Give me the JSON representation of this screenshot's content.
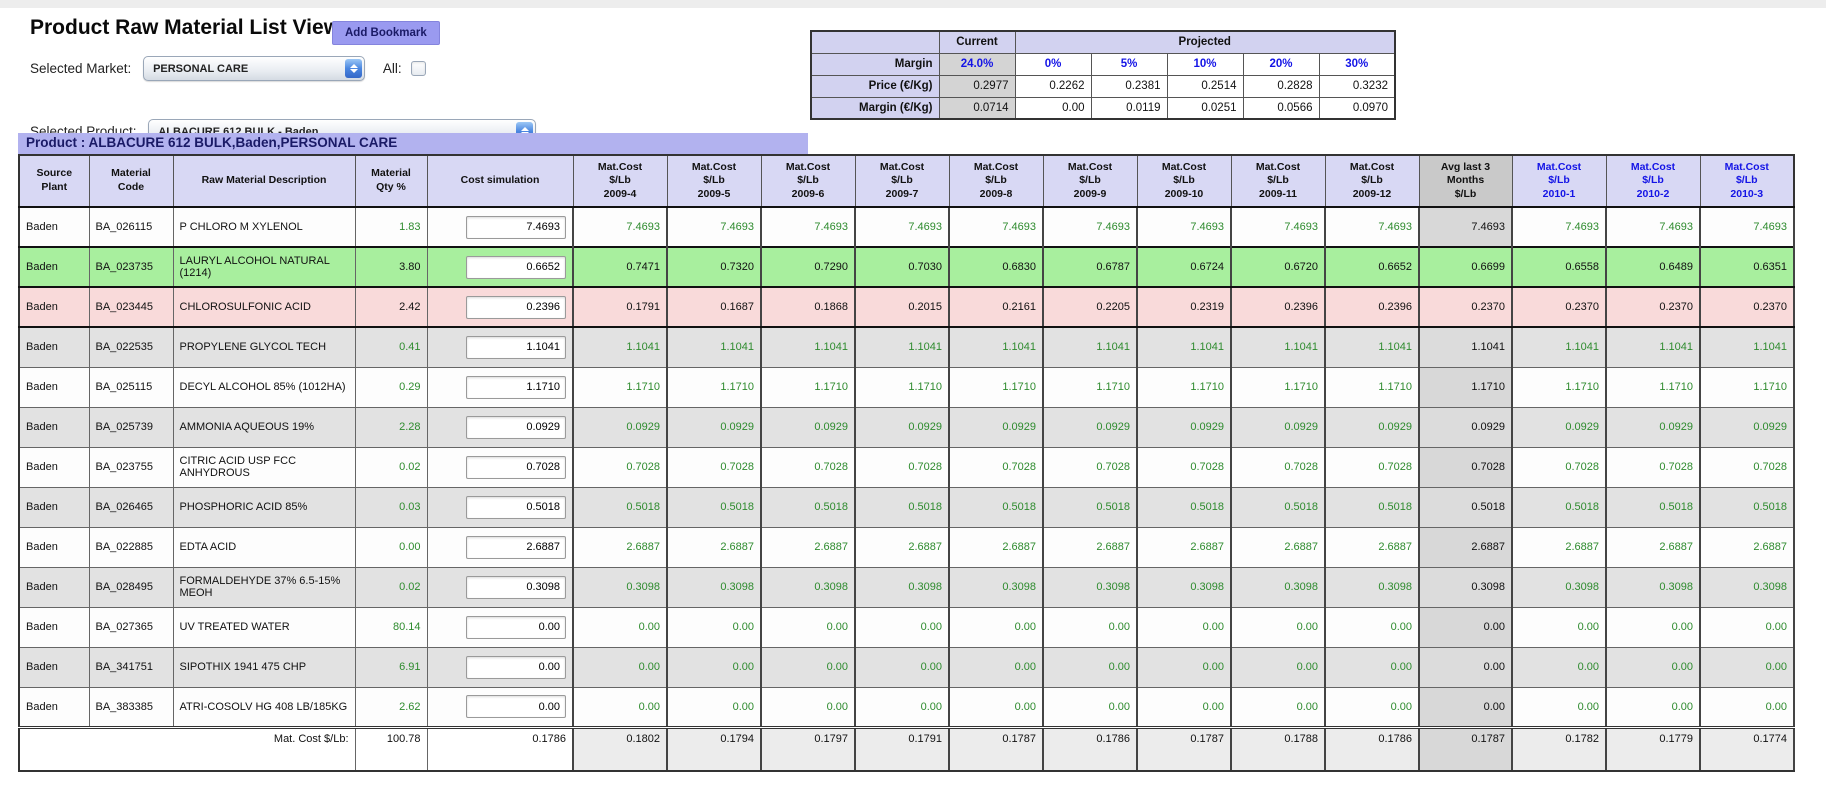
{
  "page": {
    "title": "Product Raw Material List View",
    "add_bookmark_label": "Add Bookmark"
  },
  "filters": {
    "market_label": "Selected Market:",
    "market_value": "PERSONAL CARE",
    "all_label": "All:",
    "all_checked": false,
    "product_label": "Selected Product:",
    "product_value": "ALBACURE 612 BULK - Baden"
  },
  "margin_table": {
    "current_label": "Current",
    "projected_label": "Projected",
    "margin_row": {
      "label": "Margin",
      "current": "24.0%",
      "values": [
        "0%",
        "5%",
        "10%",
        "20%",
        "30%"
      ]
    },
    "price_row": {
      "label": "Price (€/Kg)",
      "current": "0.2977",
      "values": [
        "0.2262",
        "0.2381",
        "0.2514",
        "0.2828",
        "0.3232"
      ]
    },
    "margin_kg_row": {
      "label": "Margin (€/Kg)",
      "current": "0.0714",
      "values": [
        "0.00",
        "0.0119",
        "0.0251",
        "0.0566",
        "0.0970"
      ]
    }
  },
  "banner": "Product : ALBACURE 612 BULK,Baden,PERSONAL CARE",
  "colors": {
    "accent_lavender": "#b2b2ef",
    "header_lavender": "#d8d8f4",
    "green_row": "#a8ef9e",
    "pink_row": "#f9dada",
    "gray_row": "#e2e2e2",
    "green_text": "#2e8b2e",
    "blue_text": "#1414e6",
    "avg_gray": "#d8d8d8"
  },
  "table": {
    "fixed_headers": [
      [
        "Source",
        "Plant"
      ],
      [
        "Material",
        "Code"
      ],
      [
        "Raw Material Description"
      ],
      [
        "Material",
        "Qty %"
      ],
      [
        "Cost simulation"
      ]
    ],
    "month_headers": [
      {
        "lines": [
          "Mat.Cost",
          "$/Lb",
          "2009-4"
        ],
        "type": "past"
      },
      {
        "lines": [
          "Mat.Cost",
          "$/Lb",
          "2009-5"
        ],
        "type": "past"
      },
      {
        "lines": [
          "Mat.Cost",
          "$/Lb",
          "2009-6"
        ],
        "type": "past"
      },
      {
        "lines": [
          "Mat.Cost",
          "$/Lb",
          "2009-7"
        ],
        "type": "past"
      },
      {
        "lines": [
          "Mat.Cost",
          "$/Lb",
          "2009-8"
        ],
        "type": "past"
      },
      {
        "lines": [
          "Mat.Cost",
          "$/Lb",
          "2009-9"
        ],
        "type": "past"
      },
      {
        "lines": [
          "Mat.Cost",
          "$/Lb",
          "2009-10"
        ],
        "type": "past"
      },
      {
        "lines": [
          "Mat.Cost",
          "$/Lb",
          "2009-11"
        ],
        "type": "past"
      },
      {
        "lines": [
          "Mat.Cost",
          "$/Lb",
          "2009-12"
        ],
        "type": "past"
      },
      {
        "lines": [
          "Avg last 3",
          "Months",
          "$/Lb"
        ],
        "type": "avg"
      },
      {
        "lines": [
          "Mat.Cost",
          "$/Lb",
          "2010-1"
        ],
        "type": "future"
      },
      {
        "lines": [
          "Mat.Cost",
          "$/Lb",
          "2010-2"
        ],
        "type": "future"
      },
      {
        "lines": [
          "Mat.Cost",
          "$/Lb",
          "2010-3"
        ],
        "type": "future"
      }
    ],
    "rows": [
      {
        "plant": "Baden",
        "code": "BA_026115",
        "desc": "P CHLORO M XYLENOL",
        "qty": "1.83",
        "sim": "7.4693",
        "bg": "white",
        "months": [
          "7.4693",
          "7.4693",
          "7.4693",
          "7.4693",
          "7.4693",
          "7.4693",
          "7.4693",
          "7.4693",
          "7.4693",
          "7.4693",
          "7.4693",
          "7.4693",
          "7.4693"
        ]
      },
      {
        "plant": "Baden",
        "code": "BA_023735",
        "desc": "LAURYL ALCOHOL NATURAL (1214)",
        "qty": "3.80",
        "sim": "0.6652",
        "bg": "green",
        "months": [
          "0.7471",
          "0.7320",
          "0.7290",
          "0.7030",
          "0.6830",
          "0.6787",
          "0.6724",
          "0.6720",
          "0.6652",
          "0.6699",
          "0.6558",
          "0.6489",
          "0.6351"
        ]
      },
      {
        "plant": "Baden",
        "code": "BA_023445",
        "desc": "CHLOROSULFONIC ACID",
        "qty": "2.42",
        "sim": "0.2396",
        "bg": "pink",
        "months": [
          "0.1791",
          "0.1687",
          "0.1868",
          "0.2015",
          "0.2161",
          "0.2205",
          "0.2319",
          "0.2396",
          "0.2396",
          "0.2370",
          "0.2370",
          "0.2370",
          "0.2370"
        ]
      },
      {
        "plant": "Baden",
        "code": "BA_022535",
        "desc": "PROPYLENE GLYCOL TECH",
        "qty": "0.41",
        "sim": "1.1041",
        "bg": "gray",
        "months": [
          "1.1041",
          "1.1041",
          "1.1041",
          "1.1041",
          "1.1041",
          "1.1041",
          "1.1041",
          "1.1041",
          "1.1041",
          "1.1041",
          "1.1041",
          "1.1041",
          "1.1041"
        ]
      },
      {
        "plant": "Baden",
        "code": "BA_025115",
        "desc": "DECYL ALCOHOL 85% (1012HA)",
        "qty": "0.29",
        "sim": "1.1710",
        "bg": "white",
        "months": [
          "1.1710",
          "1.1710",
          "1.1710",
          "1.1710",
          "1.1710",
          "1.1710",
          "1.1710",
          "1.1710",
          "1.1710",
          "1.1710",
          "1.1710",
          "1.1710",
          "1.1710"
        ]
      },
      {
        "plant": "Baden",
        "code": "BA_025739",
        "desc": "AMMONIA AQUEOUS 19%",
        "qty": "2.28",
        "sim": "0.0929",
        "bg": "gray",
        "months": [
          "0.0929",
          "0.0929",
          "0.0929",
          "0.0929",
          "0.0929",
          "0.0929",
          "0.0929",
          "0.0929",
          "0.0929",
          "0.0929",
          "0.0929",
          "0.0929",
          "0.0929"
        ]
      },
      {
        "plant": "Baden",
        "code": "BA_023755",
        "desc": "CITRIC ACID USP FCC ANHYDROUS",
        "qty": "0.02",
        "sim": "0.7028",
        "bg": "white",
        "months": [
          "0.7028",
          "0.7028",
          "0.7028",
          "0.7028",
          "0.7028",
          "0.7028",
          "0.7028",
          "0.7028",
          "0.7028",
          "0.7028",
          "0.7028",
          "0.7028",
          "0.7028"
        ]
      },
      {
        "plant": "Baden",
        "code": "BA_026465",
        "desc": "PHOSPHORIC ACID 85%",
        "qty": "0.03",
        "sim": "0.5018",
        "bg": "gray",
        "months": [
          "0.5018",
          "0.5018",
          "0.5018",
          "0.5018",
          "0.5018",
          "0.5018",
          "0.5018",
          "0.5018",
          "0.5018",
          "0.5018",
          "0.5018",
          "0.5018",
          "0.5018"
        ]
      },
      {
        "plant": "Baden",
        "code": "BA_022885",
        "desc": "EDTA ACID",
        "qty": "0.00",
        "sim": "2.6887",
        "bg": "white",
        "months": [
          "2.6887",
          "2.6887",
          "2.6887",
          "2.6887",
          "2.6887",
          "2.6887",
          "2.6887",
          "2.6887",
          "2.6887",
          "2.6887",
          "2.6887",
          "2.6887",
          "2.6887"
        ]
      },
      {
        "plant": "Baden",
        "code": "BA_028495",
        "desc": "FORMALDEHYDE 37% 6.5-15% MEOH",
        "qty": "0.02",
        "sim": "0.3098",
        "bg": "gray",
        "months": [
          "0.3098",
          "0.3098",
          "0.3098",
          "0.3098",
          "0.3098",
          "0.3098",
          "0.3098",
          "0.3098",
          "0.3098",
          "0.3098",
          "0.3098",
          "0.3098",
          "0.3098"
        ]
      },
      {
        "plant": "Baden",
        "code": "BA_027365",
        "desc": "UV TREATED WATER",
        "qty": "80.14",
        "sim": "0.00",
        "bg": "white",
        "months": [
          "0.00",
          "0.00",
          "0.00",
          "0.00",
          "0.00",
          "0.00",
          "0.00",
          "0.00",
          "0.00",
          "0.00",
          "0.00",
          "0.00",
          "0.00"
        ]
      },
      {
        "plant": "Baden",
        "code": "BA_341751",
        "desc": "SIPOTHIX 1941 475 CHP",
        "qty": "6.91",
        "sim": "0.00",
        "bg": "gray",
        "months": [
          "0.00",
          "0.00",
          "0.00",
          "0.00",
          "0.00",
          "0.00",
          "0.00",
          "0.00",
          "0.00",
          "0.00",
          "0.00",
          "0.00",
          "0.00"
        ]
      },
      {
        "plant": "Baden",
        "code": "BA_383385",
        "desc": "ATRI-COSOLV HG 408 LB/185KG",
        "qty": "2.62",
        "sim": "0.00",
        "bg": "white",
        "months": [
          "0.00",
          "0.00",
          "0.00",
          "0.00",
          "0.00",
          "0.00",
          "0.00",
          "0.00",
          "0.00",
          "0.00",
          "0.00",
          "0.00",
          "0.00"
        ]
      }
    ],
    "footer": {
      "label": "Mat. Cost $/Lb:",
      "qty": "100.78",
      "sim": "0.1786",
      "months": [
        "0.1802",
        "0.1794",
        "0.1797",
        "0.1791",
        "0.1787",
        "0.1786",
        "0.1787",
        "0.1788",
        "0.1786",
        "0.1787",
        "0.1782",
        "0.1779",
        "0.1774"
      ]
    }
  }
}
